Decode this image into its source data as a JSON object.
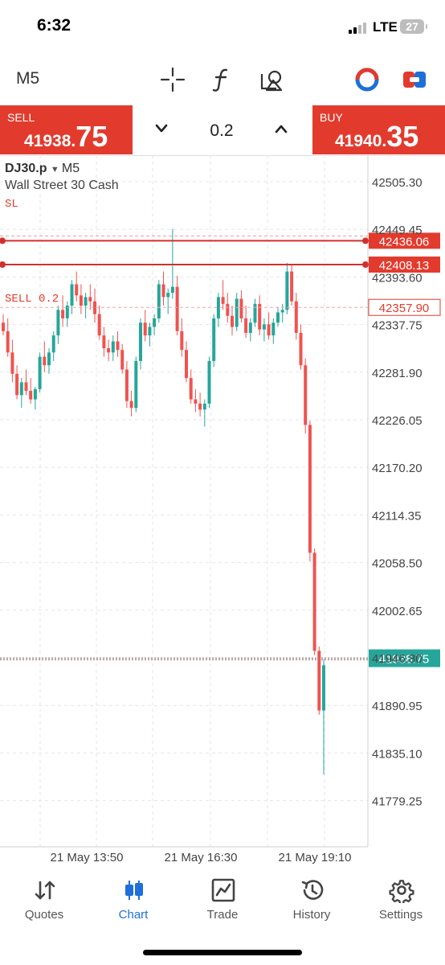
{
  "status_bar": {
    "time": "6:32",
    "network": "LTE",
    "battery": "27"
  },
  "toolbar": {
    "timeframe": "M5"
  },
  "trade_panel": {
    "sell": {
      "label": "SELL",
      "price_main": "41938.",
      "price_big": "75"
    },
    "buy": {
      "label": "BUY",
      "price_main": "41940.",
      "price_big": "35"
    },
    "lot_size": "0.2"
  },
  "chart": {
    "symbol": "DJ30.p",
    "timeframe": "M5",
    "description": "Wall Street 30 Cash",
    "sl_label": "SL",
    "position_label": "SELL 0.2",
    "colors": {
      "up": "#26a69a",
      "down": "#ef5350",
      "level": "#d32f2f"
    }
  },
  "chart_data": {
    "type": "candlestick",
    "y_ticks": [
      "42505.30",
      "42449.45",
      "42393.60",
      "42337.75",
      "42281.90",
      "42226.05",
      "42170.20",
      "42114.35",
      "42058.50",
      "42002.65",
      "41946.80",
      "41890.95",
      "41835.10",
      "41779.25"
    ],
    "x_ticks": [
      "21 May 13:50",
      "21 May 16:30",
      "21 May 19:10"
    ],
    "ylim": [
      41735,
      42545
    ],
    "price_lines": [
      {
        "label": "SL",
        "value": 42436.06,
        "text": "42436.06"
      },
      {
        "value": 42408.13,
        "text": "42408.13"
      },
      {
        "label": "SELL 0.2",
        "value": 42357.9,
        "text": "42357.90"
      },
      {
        "value": 41938.75,
        "text": "41938.75"
      }
    ],
    "candles": [
      [
        42340,
        42350,
        42325,
        42330
      ],
      [
        42330,
        42345,
        42300,
        42305
      ],
      [
        42305,
        42320,
        42270,
        42280
      ],
      [
        42280,
        42290,
        42250,
        42255
      ],
      [
        42255,
        42275,
        42240,
        42270
      ],
      [
        42270,
        42285,
        42255,
        42260
      ],
      [
        42260,
        42275,
        42245,
        42250
      ],
      [
        42250,
        42265,
        42238,
        42262
      ],
      [
        42262,
        42305,
        42258,
        42300
      ],
      [
        42300,
        42318,
        42282,
        42290
      ],
      [
        42290,
        42310,
        42280,
        42305
      ],
      [
        42305,
        42330,
        42295,
        42325
      ],
      [
        42325,
        42360,
        42315,
        42355
      ],
      [
        42355,
        42372,
        42335,
        42345
      ],
      [
        42345,
        42365,
        42335,
        42360
      ],
      [
        42360,
        42390,
        42350,
        42385
      ],
      [
        42385,
        42400,
        42365,
        42372
      ],
      [
        42372,
        42385,
        42350,
        42360
      ],
      [
        42360,
        42375,
        42345,
        42370
      ],
      [
        42370,
        42385,
        42355,
        42365
      ],
      [
        42365,
        42380,
        42340,
        42350
      ],
      [
        42350,
        42360,
        42320,
        42325
      ],
      [
        42325,
        42335,
        42300,
        42310
      ],
      [
        42310,
        42320,
        42295,
        42305
      ],
      [
        42305,
        42325,
        42295,
        42318
      ],
      [
        42318,
        42330,
        42300,
        42308
      ],
      [
        42308,
        42315,
        42280,
        42285
      ],
      [
        42285,
        42295,
        42240,
        42248
      ],
      [
        42248,
        42260,
        42230,
        42240
      ],
      [
        42240,
        42300,
        42235,
        42295
      ],
      [
        42295,
        42345,
        42285,
        42340
      ],
      [
        42340,
        42355,
        42318,
        42325
      ],
      [
        42325,
        42340,
        42312,
        42335
      ],
      [
        42335,
        42350,
        42325,
        42345
      ],
      [
        42345,
        42390,
        42340,
        42385
      ],
      [
        42385,
        42400,
        42360,
        42370
      ],
      [
        42370,
        42380,
        42350,
        42375
      ],
      [
        42375,
        42450,
        42368,
        42382
      ],
      [
        42382,
        42395,
        42325,
        42330
      ],
      [
        42330,
        42345,
        42300,
        42308
      ],
      [
        42308,
        42318,
        42270,
        42275
      ],
      [
        42275,
        42285,
        42245,
        42250
      ],
      [
        42250,
        42262,
        42235,
        42245
      ],
      [
        42245,
        42258,
        42230,
        42238
      ],
      [
        42238,
        42250,
        42218,
        42245
      ],
      [
        42245,
        42300,
        42240,
        42295
      ],
      [
        42295,
        42350,
        42288,
        42345
      ],
      [
        42345,
        42375,
        42335,
        42370
      ],
      [
        42370,
        42390,
        42355,
        42362
      ],
      [
        42362,
        42375,
        42340,
        42348
      ],
      [
        42348,
        42360,
        42325,
        42335
      ],
      [
        42335,
        42375,
        42330,
        42368
      ],
      [
        42368,
        42378,
        42340,
        42345
      ],
      [
        42345,
        42360,
        42322,
        42328
      ],
      [
        42328,
        42345,
        42318,
        42340
      ],
      [
        42340,
        42368,
        42335,
        42362
      ],
      [
        42362,
        42372,
        42325,
        42332
      ],
      [
        42332,
        42345,
        42318,
        42338
      ],
      [
        42338,
        42352,
        42320,
        42325
      ],
      [
        42325,
        42345,
        42315,
        42340
      ],
      [
        42340,
        42358,
        42335,
        42352
      ],
      [
        42352,
        42362,
        42340,
        42355
      ],
      [
        42355,
        42410,
        42350,
        42400
      ],
      [
        42400,
        42408,
        42360,
        42365
      ],
      [
        42365,
        42375,
        42320,
        42328
      ],
      [
        42328,
        42338,
        42285,
        42290
      ],
      [
        42290,
        42298,
        42210,
        42220
      ],
      [
        42220,
        42225,
        42060,
        42070
      ],
      [
        42070,
        42075,
        41950,
        41955
      ],
      [
        41955,
        41960,
        41880,
        41885
      ],
      [
        41885,
        41945,
        41810,
        41938
      ]
    ]
  },
  "nav": {
    "items": [
      {
        "label": "Quotes",
        "icon": "sort-arrows-icon"
      },
      {
        "label": "Chart",
        "icon": "candlestick-icon"
      },
      {
        "label": "Trade",
        "icon": "trend-chart-icon"
      },
      {
        "label": "History",
        "icon": "history-clock-icon"
      },
      {
        "label": "Settings",
        "icon": "gear-icon"
      }
    ]
  }
}
